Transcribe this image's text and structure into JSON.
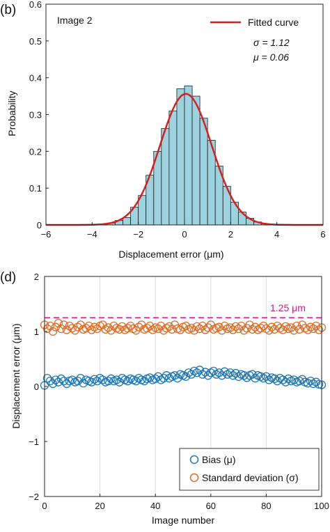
{
  "chart_data": [
    {
      "type": "bar",
      "panel_label": "(b)",
      "annotation": "Image  2",
      "xlabel": "Displacement error (μm)",
      "ylabel": "Probability",
      "xlim": [
        -6,
        6
      ],
      "ylim": [
        0,
        0.6
      ],
      "xticks": [
        "−6",
        "−4",
        "−2",
        "0",
        "2",
        "4",
        "6"
      ],
      "yticks": [
        "0",
        "0.1",
        "0.2",
        "0.3",
        "0.4",
        "0.5",
        "0.6"
      ],
      "grid": false,
      "bin_width": 0.333,
      "bin_starts": [
        -3.667,
        -3.333,
        -3.0,
        -2.667,
        -2.333,
        -2.0,
        -1.667,
        -1.333,
        -1.0,
        -0.667,
        -0.333,
        0.0,
        0.333,
        0.667,
        1.0,
        1.333,
        1.667,
        2.0,
        2.333,
        2.667,
        3.0,
        3.333
      ],
      "values": [
        0.002,
        0.005,
        0.012,
        0.02,
        0.048,
        0.08,
        0.135,
        0.2,
        0.262,
        0.31,
        0.37,
        0.378,
        0.35,
        0.29,
        0.23,
        0.16,
        0.105,
        0.062,
        0.035,
        0.018,
        0.008,
        0.003
      ],
      "series": [
        {
          "name": "Fitted curve",
          "type": "line",
          "distribution": "normal",
          "mu": 0.06,
          "sigma": 1.12
        }
      ],
      "legend_position": "top-right",
      "stats": {
        "sigma_label": "σ = 1.12",
        "mu_label": "μ = 0.06"
      },
      "colors": {
        "bars": "#9dd3de",
        "bar_edge": "#1e1e1e",
        "curve": "#d62020"
      }
    },
    {
      "type": "scatter",
      "panel_label": "(d)",
      "xlabel": "Image number",
      "ylabel": "Displacement error (μm)",
      "xlim": [
        0,
        100
      ],
      "ylim": [
        -2,
        2
      ],
      "xticks": [
        "0",
        "20",
        "40",
        "60",
        "80",
        "100"
      ],
      "yticks": [
        "−2",
        "−1",
        "0",
        "1",
        "2"
      ],
      "grid": "vertical",
      "reference_line": {
        "value": 1.25,
        "label": "1.25 μm",
        "color": "#d6168a"
      },
      "x": [
        0,
        1,
        2,
        3,
        4,
        5,
        6,
        7,
        8,
        9,
        10,
        11,
        12,
        13,
        14,
        15,
        16,
        17,
        18,
        19,
        20,
        21,
        22,
        23,
        24,
        25,
        26,
        27,
        28,
        29,
        30,
        31,
        32,
        33,
        34,
        35,
        36,
        37,
        38,
        39,
        40,
        41,
        42,
        43,
        44,
        45,
        46,
        47,
        48,
        49,
        50,
        51,
        52,
        53,
        54,
        55,
        56,
        57,
        58,
        59,
        60,
        61,
        62,
        63,
        64,
        65,
        66,
        67,
        68,
        69,
        70,
        71,
        72,
        73,
        74,
        75,
        76,
        77,
        78,
        79,
        80,
        81,
        82,
        83,
        84,
        85,
        86,
        87,
        88,
        89,
        90,
        91,
        92,
        93,
        94,
        95,
        96,
        97,
        98,
        99,
        100
      ],
      "series": [
        {
          "name": "Bias (μ)",
          "color": "#1f77b4",
          "values": [
            0.02,
            0.15,
            0.1,
            0.05,
            0.12,
            0.08,
            0.14,
            0.1,
            0.05,
            0.1,
            0.12,
            0.08,
            0.1,
            0.15,
            0.06,
            0.12,
            0.1,
            0.08,
            0.13,
            0.1,
            0.15,
            0.12,
            0.08,
            0.1,
            0.14,
            0.1,
            0.12,
            0.08,
            0.15,
            0.12,
            0.1,
            0.14,
            0.12,
            0.1,
            0.15,
            0.12,
            0.1,
            0.14,
            0.16,
            0.12,
            0.14,
            0.18,
            0.12,
            0.15,
            0.2,
            0.15,
            0.18,
            0.2,
            0.15,
            0.22,
            0.2,
            0.18,
            0.25,
            0.22,
            0.28,
            0.25,
            0.3,
            0.22,
            0.26,
            0.2,
            0.25,
            0.28,
            0.22,
            0.25,
            0.2,
            0.27,
            0.22,
            0.25,
            0.2,
            0.24,
            0.18,
            0.22,
            0.2,
            0.16,
            0.2,
            0.22,
            0.15,
            0.2,
            0.18,
            0.15,
            0.18,
            0.12,
            0.16,
            0.14,
            0.1,
            0.15,
            0.12,
            0.08,
            0.14,
            0.1,
            0.12,
            0.08,
            0.1,
            0.13,
            0.08,
            0.06,
            0.1,
            0.05,
            0.08,
            0.04,
            0.03
          ]
        },
        {
          "name": "Standard deviation (σ)",
          "color": "#e06c25",
          "values": [
            1.12,
            1.05,
            1.1,
            1.0,
            1.08,
            1.15,
            1.05,
            1.12,
            1.03,
            1.1,
            1.06,
            1.02,
            1.08,
            1.12,
            1.04,
            1.06,
            1.1,
            1.03,
            1.08,
            1.05,
            1.1,
            1.12,
            1.04,
            1.07,
            1.02,
            1.1,
            1.06,
            1.04,
            1.09,
            1.03,
            1.06,
            1.1,
            1.05,
            1.02,
            1.08,
            1.12,
            1.04,
            1.06,
            1.1,
            1.03,
            1.07,
            1.05,
            1.1,
            1.02,
            1.06,
            1.09,
            1.04,
            1.12,
            1.05,
            1.03,
            1.08,
            1.1,
            1.04,
            1.06,
            1.02,
            1.09,
            1.05,
            1.1,
            1.03,
            1.07,
            1.12,
            1.04,
            1.06,
            1.08,
            1.02,
            1.1,
            1.05,
            1.07,
            1.03,
            1.09,
            1.05,
            1.1,
            1.02,
            1.06,
            1.12,
            1.04,
            1.08,
            1.03,
            1.06,
            1.1,
            1.05,
            1.02,
            1.08,
            1.04,
            1.1,
            1.06,
            1.03,
            1.09,
            1.05,
            1.07,
            1.02,
            1.1,
            1.04,
            1.12,
            1.06,
            1.03,
            1.08,
            1.05,
            1.1,
            1.03,
            1.07
          ]
        }
      ],
      "legend_position": "bottom-right"
    }
  ]
}
